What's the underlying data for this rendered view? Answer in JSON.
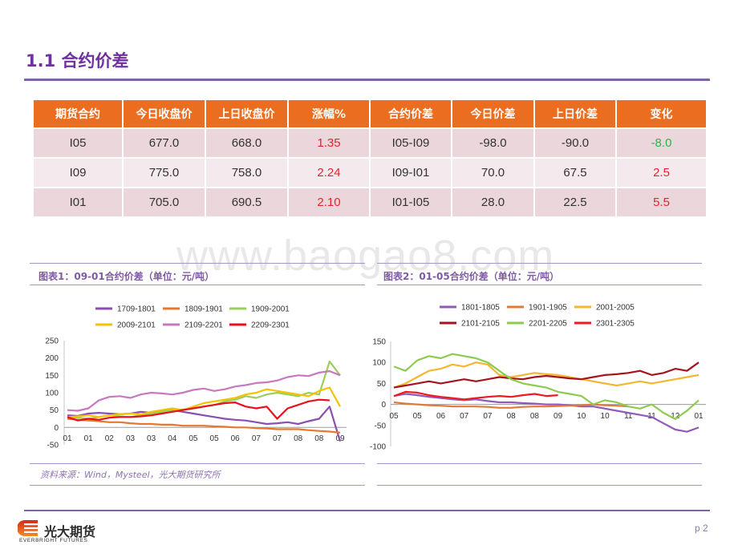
{
  "header": {
    "title": "1.1 合约价差"
  },
  "watermark": "www.baogao8.com",
  "table": {
    "columns": [
      "期货合约",
      "今日收盘价",
      "上日收盘价",
      "涨幅%",
      "合约价差",
      "今日价差",
      "上日价差",
      "变化"
    ],
    "rows": [
      {
        "contract": "I05",
        "today_close": "677.0",
        "prev_close": "668.0",
        "pct": "1.35",
        "pct_color": "#E8222D",
        "spread": "I05-I09",
        "today_spread": "-98.0",
        "prev_spread": "-90.0",
        "change": "-8.0",
        "change_color": "#2BB547"
      },
      {
        "contract": "I09",
        "today_close": "775.0",
        "prev_close": "758.0",
        "pct": "2.24",
        "pct_color": "#E8222D",
        "spread": "I09-I01",
        "today_spread": "70.0",
        "prev_spread": "67.5",
        "change": "2.5",
        "change_color": "#E8222D"
      },
      {
        "contract": "I01",
        "today_close": "705.0",
        "prev_close": "690.5",
        "pct": "2.10",
        "pct_color": "#E8222D",
        "spread": "I01-I05",
        "today_spread": "28.0",
        "prev_spread": "22.5",
        "change": "5.5",
        "change_color": "#E8222D"
      }
    ],
    "colors": {
      "header_bg": "#EB6D1F"
    }
  },
  "chart_data": [
    {
      "type": "line",
      "title": "图表1：09-01合约价差（单位：元/吨）",
      "legend": "top",
      "ylim": [
        -50,
        250
      ],
      "yticks": [
        250,
        200,
        150,
        100,
        50,
        0,
        -50
      ],
      "x_ticks": [
        "01",
        "01",
        "02",
        "03",
        "03",
        "04",
        "05",
        "05",
        "06",
        "07",
        "07",
        "08",
        "08",
        "09"
      ],
      "series": [
        {
          "name": "1709-1801",
          "color": "#8A4FB0",
          "values": [
            35,
            33,
            40,
            42,
            40,
            38,
            40,
            45,
            42,
            48,
            50,
            45,
            40,
            35,
            30,
            25,
            22,
            20,
            15,
            10,
            12,
            15,
            10,
            18,
            25,
            60,
            -40
          ]
        },
        {
          "name": "1809-1901",
          "color": "#E8772E",
          "values": [
            25,
            22,
            20,
            18,
            15,
            15,
            12,
            10,
            10,
            8,
            8,
            5,
            5,
            5,
            3,
            2,
            0,
            0,
            -2,
            -3,
            -5,
            -5,
            -5,
            -8,
            -10,
            -12,
            -15
          ]
        },
        {
          "name": "1909-2001",
          "color": "#9BCF5B",
          "values": [
            30,
            28,
            25,
            30,
            35,
            32,
            30,
            35,
            40,
            45,
            50,
            52,
            55,
            60,
            65,
            75,
            80,
            90,
            85,
            95,
            100,
            95,
            90,
            100,
            95,
            190,
            150
          ]
        },
        {
          "name": "2009-2101",
          "color": "#F5C200",
          "values": [
            30,
            32,
            35,
            30,
            35,
            38,
            40,
            38,
            45,
            50,
            55,
            50,
            60,
            70,
            75,
            80,
            85,
            95,
            100,
            110,
            105,
            100,
            95,
            90,
            105,
            115,
            60
          ]
        },
        {
          "name": "2109-2201",
          "color": "#C878C0",
          "values": [
            50,
            48,
            55,
            78,
            88,
            90,
            85,
            95,
            100,
            98,
            95,
            100,
            108,
            112,
            105,
            110,
            118,
            122,
            128,
            130,
            135,
            145,
            150,
            148,
            158,
            162,
            150
          ]
        },
        {
          "name": "2209-2301",
          "color": "#E8101A",
          "values": [
            30,
            20,
            25,
            22,
            28,
            30,
            30,
            32,
            35,
            40,
            45,
            50,
            55,
            60,
            65,
            70,
            72,
            60,
            55,
            60,
            25,
            55,
            65,
            75,
            80,
            78
          ]
        }
      ]
    },
    {
      "type": "line",
      "title": "图表2：01-05合约价差（单位：元/吨）",
      "legend": "top",
      "ylim": [
        -100,
        150
      ],
      "yticks": [
        150,
        100,
        50,
        0,
        -50,
        -100
      ],
      "x_ticks": [
        "05",
        "05",
        "06",
        "07",
        "07",
        "08",
        "08",
        "09",
        "10",
        "10",
        "11",
        "11",
        "12",
        "01"
      ],
      "series": [
        {
          "name": "1801-1805",
          "color": "#9159B8",
          "values": [
            20,
            25,
            22,
            18,
            15,
            12,
            10,
            12,
            8,
            5,
            5,
            3,
            2,
            0,
            0,
            -2,
            -5,
            -5,
            -10,
            -15,
            -20,
            -25,
            -30,
            -45,
            -60,
            -65,
            -55
          ]
        },
        {
          "name": "1901-1905",
          "color": "#E07A3A",
          "values": [
            5,
            2,
            0,
            -2,
            -3,
            -5,
            -5,
            -5,
            -6,
            -8,
            -8,
            -6,
            -5,
            -5,
            -4,
            -3,
            -2,
            0,
            -2,
            -3,
            -5
          ]
        },
        {
          "name": "2001-2005",
          "color": "#F5B52E",
          "values": [
            40,
            50,
            65,
            80,
            85,
            95,
            90,
            100,
            95,
            70,
            65,
            70,
            75,
            72,
            70,
            65,
            60,
            55,
            50,
            45,
            50,
            55,
            50,
            55,
            60,
            65,
            70
          ]
        },
        {
          "name": "2101-2105",
          "color": "#A4141C",
          "values": [
            40,
            45,
            50,
            55,
            50,
            55,
            60,
            55,
            60,
            65,
            62,
            60,
            65,
            68,
            65,
            62,
            60,
            65,
            70,
            72,
            75,
            80,
            70,
            75,
            85,
            80,
            100
          ]
        },
        {
          "name": "2201-2205",
          "color": "#8DCB4F",
          "values": [
            90,
            80,
            105,
            115,
            110,
            120,
            115,
            110,
            100,
            80,
            60,
            50,
            45,
            40,
            30,
            25,
            20,
            0,
            10,
            5,
            -5,
            -10,
            0,
            -20,
            -35,
            -15,
            10
          ]
        },
        {
          "name": "2301-2305",
          "color": "#EE1A1F",
          "values": [
            20,
            30,
            28,
            22,
            18,
            15,
            12,
            15,
            18,
            20,
            18,
            22,
            25,
            20,
            22
          ]
        }
      ]
    }
  ],
  "source": "资料来源：Wind，Mysteel，光大期货研究所",
  "footer": {
    "company": "光大期货",
    "company_en": "EVERBRIGHT FUTURES",
    "page": "p 2"
  }
}
